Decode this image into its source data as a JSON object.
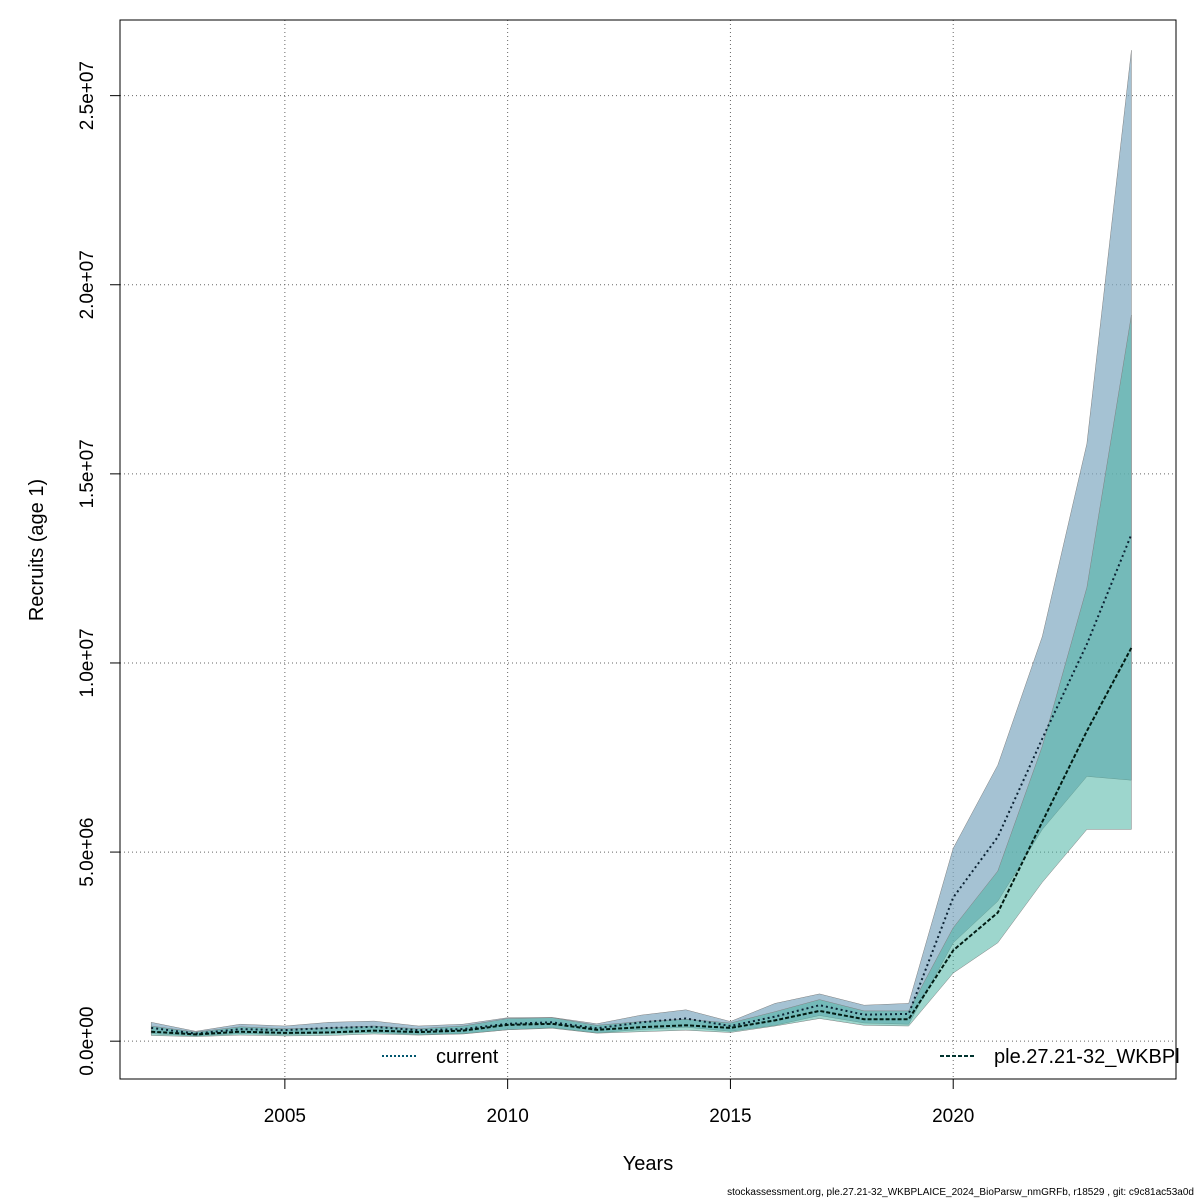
{
  "chart_data": {
    "type": "area",
    "xlabel": "Years",
    "ylabel": "Recruits (age 1)",
    "xlim": [
      2001.3,
      2025.0
    ],
    "ylim": [
      -1000000,
      27000000
    ],
    "x_ticks": [
      2005,
      2010,
      2015,
      2020
    ],
    "x_tick_labels": [
      "2005",
      "2010",
      "2015",
      "2020"
    ],
    "y_ticks": [
      0,
      5000000,
      10000000,
      15000000,
      20000000,
      25000000
    ],
    "y_tick_labels": [
      "0.0e+00",
      "5.0e+06",
      "1.0e+07",
      "1.5e+07",
      "2.0e+07",
      "2.5e+07"
    ],
    "grid": true,
    "legend_position": "bottom",
    "x": [
      2002,
      2003,
      2004,
      2005,
      2006,
      2007,
      2008,
      2009,
      2010,
      2011,
      2012,
      2013,
      2014,
      2015,
      2016,
      2017,
      2018,
      2019,
      2020,
      2021,
      2022,
      2023,
      2024
    ],
    "series": [
      {
        "name": "current",
        "color": "#00566E",
        "band_color": "#7FA8C0",
        "line_style": "dotted",
        "values": [
          350000,
          200000,
          320000,
          290000,
          350000,
          380000,
          290000,
          320000,
          460000,
          500000,
          340000,
          500000,
          600000,
          400000,
          650000,
          950000,
          700000,
          720000,
          3800000,
          5400000,
          8000000,
          10500000,
          13400000
        ],
        "lower": [
          200000,
          140000,
          200000,
          180000,
          210000,
          230000,
          180000,
          200000,
          300000,
          360000,
          220000,
          310000,
          370000,
          260000,
          420000,
          680000,
          480000,
          450000,
          2600000,
          3700000,
          5600000,
          7000000,
          6900000
        ],
        "upper": [
          500000,
          260000,
          450000,
          400000,
          500000,
          530000,
          400000,
          450000,
          620000,
          630000,
          460000,
          690000,
          830000,
          520000,
          1000000,
          1250000,
          950000,
          1000000,
          5100000,
          7300000,
          10700000,
          15800000,
          26200000
        ]
      },
      {
        "name": "ple.27.21-32_WKBPl",
        "color": "#00332E",
        "band_color": "#4DB5A4",
        "line_style": "dashed",
        "values": [
          250000,
          180000,
          250000,
          220000,
          230000,
          280000,
          240000,
          280000,
          430000,
          460000,
          300000,
          370000,
          420000,
          350000,
          550000,
          800000,
          580000,
          580000,
          2400000,
          3400000,
          5800000,
          8200000,
          10400000
        ],
        "lower": [
          150000,
          120000,
          160000,
          140000,
          150000,
          190000,
          160000,
          190000,
          300000,
          340000,
          210000,
          250000,
          290000,
          230000,
          400000,
          600000,
          420000,
          400000,
          1800000,
          2600000,
          4200000,
          5600000,
          5600000
        ],
        "upper": [
          400000,
          240000,
          380000,
          330000,
          350000,
          400000,
          330000,
          400000,
          600000,
          620000,
          420000,
          520000,
          580000,
          480000,
          780000,
          1100000,
          800000,
          800000,
          3000000,
          4500000,
          7800000,
          12000000,
          19200000
        ]
      }
    ]
  },
  "footer": "stockassessment.org, ple.27.21-32_WKBPLAICE_2024_BioParsw_nmGRFb, r18529 , git: c9c81ac53a0d"
}
